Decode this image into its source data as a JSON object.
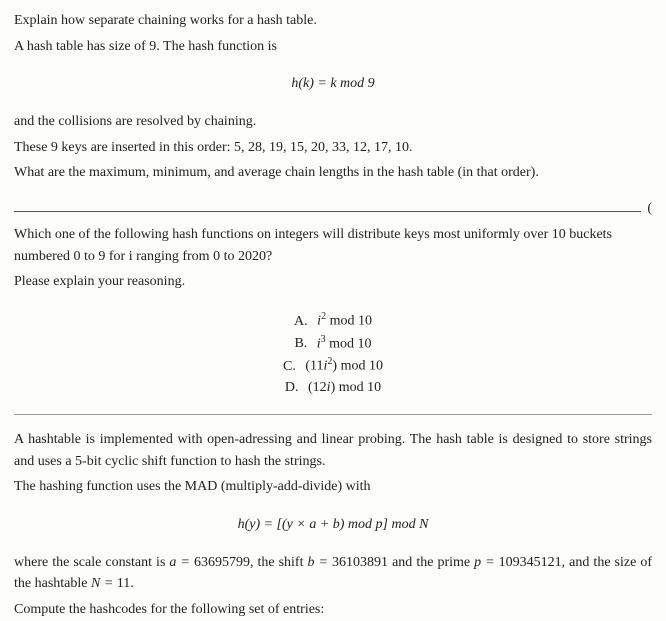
{
  "q1": {
    "line1": "Explain how separate chaining works for a hash table.",
    "line2": "A hash table has size of 9. The hash function is",
    "formula": "h(k) = k   mod 9",
    "line3": "and the collisions are resolved by chaining.",
    "line4": "These 9 keys are inserted in this order: 5, 28, 19, 15, 20, 33, 12, 17, 10.",
    "line5": "What are the maximum, minimum, and average chain lengths in the hash table (in that order)."
  },
  "q2": {
    "divider_trail": "(",
    "line1": "Which one of the following hash functions on integers will distribute keys most uniformly over 10 buckets numbered 0 to 9 for i ranging from 0 to 2020?",
    "line2": "Please explain your reasoning.",
    "choices": {
      "A": {
        "label": "A.",
        "base": "i",
        "exp": "2",
        "tail": "   mod 10"
      },
      "B": {
        "label": "B.",
        "base": "i",
        "exp": "3",
        "tail": "   mod 10"
      },
      "C": {
        "label": "C.",
        "pre": "(11",
        "base": "i",
        "exp": "2",
        "post": ")",
        "tail": "   mod 10"
      },
      "D": {
        "label": "D.",
        "pre": "(12",
        "base": "i",
        "post": ")",
        "tail": "   mod 10"
      }
    }
  },
  "q3": {
    "line1": "A hashtable is implemented with open-adressing and linear probing. The hash table is designed to store strings and uses a 5-bit cyclic shift function to hash the strings.",
    "line2": "The hashing function uses the MAD (multiply-add-divide) with",
    "formula": "h(y) = [(y × a + b)   mod p]   mod N",
    "line3_pre": "where the scale constant is ",
    "a_lbl": "a = ",
    "a_val": "63695799",
    "sep1": ", the shift ",
    "b_lbl": "b = ",
    "b_val": "36103891",
    "sep2": " and the prime ",
    "p_lbl": "p = ",
    "p_val": "109345121",
    "sep3": ", and the size of the hashtable ",
    "n_lbl": "N = ",
    "n_val": "11",
    "line3_post": ".",
    "line4": "Compute the hashcodes for the following set of entries:"
  },
  "style": {
    "text_color": "#222",
    "bg_color": "#fcfcfb",
    "rule_color": "#555",
    "body_fontsize": 14,
    "formula_fontsize": 14,
    "sup_fontsize": 10
  }
}
